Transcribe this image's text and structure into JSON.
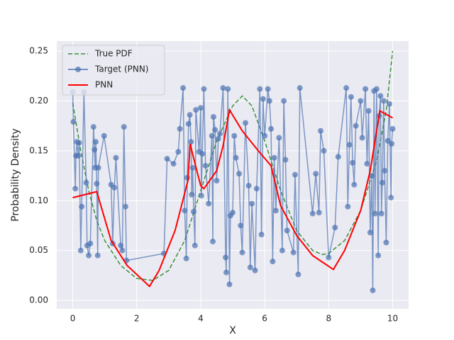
{
  "chart_data": {
    "type": "line",
    "xlabel": "X",
    "ylabel": "Probability Density",
    "xlim": [
      -0.5,
      10.5
    ],
    "ylim": [
      -0.0085,
      0.26
    ],
    "xticks": [
      0,
      2,
      4,
      6,
      8,
      10
    ],
    "yticks": [
      {
        "value": 0,
        "label": "0.00"
      },
      0.05,
      {
        "value": 0.1,
        "label": "0.10"
      },
      0.15,
      {
        "value": 0.2,
        "label": "0.20"
      },
      0.25
    ],
    "grid": true,
    "legend": "upper left",
    "background": "#eaeaf2",
    "series": [
      {
        "name": "True PDF",
        "color": "#3a923a",
        "linestyle": "dashed",
        "marker": "none",
        "x": [
          0,
          0.25,
          0.5,
          0.75,
          1,
          1.5,
          2,
          2.5,
          3,
          3.5,
          4,
          4.5,
          5,
          5.3,
          5.6,
          6,
          6.5,
          7,
          7.5,
          7.8,
          8,
          8.5,
          9,
          9.5,
          9.8,
          10
        ],
        "values": [
          0.198,
          0.15,
          0.11,
          0.08,
          0.06,
          0.035,
          0.022,
          0.02,
          0.03,
          0.06,
          0.11,
          0.16,
          0.195,
          0.205,
          0.195,
          0.16,
          0.11,
          0.07,
          0.05,
          0.046,
          0.047,
          0.06,
          0.09,
          0.14,
          0.19,
          0.25
        ]
      },
      {
        "name": "Target (PNN)",
        "color": "#4c72b0",
        "linestyle": "solid",
        "marker": "circle",
        "x": [
          0.0,
          0.02,
          0.08,
          0.1,
          0.13,
          0.17,
          0.2,
          0.25,
          0.28,
          0.35,
          0.42,
          0.45,
          0.5,
          0.55,
          0.65,
          0.68,
          0.7,
          0.72,
          0.75,
          0.78,
          0.8,
          0.98,
          1.2,
          1.25,
          1.3,
          1.35,
          1.5,
          1.55,
          1.6,
          1.65,
          1.68,
          2.85,
          2.95,
          3.15,
          3.3,
          3.35,
          3.45,
          3.5,
          3.55,
          3.58,
          3.62,
          3.66,
          3.7,
          3.72,
          3.75,
          3.78,
          3.82,
          3.85,
          3.95,
          4.0,
          4.02,
          4.05,
          4.1,
          4.15,
          4.25,
          4.35,
          4.38,
          4.4,
          4.45,
          4.5,
          4.55,
          4.6,
          4.7,
          4.78,
          4.8,
          4.85,
          4.9,
          4.93,
          5.0,
          5.05,
          5.1,
          5.2,
          5.25,
          5.3,
          5.4,
          5.5,
          5.55,
          5.6,
          5.7,
          5.75,
          5.85,
          5.9,
          5.95,
          6.0,
          6.1,
          6.15,
          6.2,
          6.25,
          6.3,
          6.35,
          6.45,
          6.55,
          6.6,
          6.65,
          6.7,
          6.9,
          6.95,
          7.05,
          7.1,
          7.5,
          7.6,
          7.7,
          7.75,
          7.85,
          8.0,
          8.2,
          8.3,
          8.55,
          8.6,
          8.65,
          8.7,
          8.75,
          8.8,
          8.85,
          9.0,
          9.05,
          9.15,
          9.2,
          9.25,
          9.3,
          9.35,
          9.38,
          9.42,
          9.45,
          9.5,
          9.55,
          9.58,
          9.62,
          9.65,
          9.68,
          9.72,
          9.75,
          9.8,
          9.85,
          9.9,
          9.95,
          9.97,
          10.0
        ],
        "values": [
          0.209,
          0.179,
          0.112,
          0.145,
          0.159,
          0.145,
          0.158,
          0.05,
          0.094,
          0.209,
          0.118,
          0.055,
          0.045,
          0.057,
          0.174,
          0.151,
          0.133,
          0.159,
          0.117,
          0.045,
          0.133,
          0.165,
          0.116,
          0.057,
          0.113,
          0.143,
          0.055,
          0.05,
          0.174,
          0.094,
          0.04,
          0.047,
          0.142,
          0.137,
          0.149,
          0.172,
          0.213,
          0.09,
          0.042,
          0.123,
          0.177,
          0.186,
          0.159,
          0.106,
          0.133,
          0.089,
          0.055,
          0.191,
          0.149,
          0.193,
          0.105,
          0.147,
          0.212,
          0.135,
          0.097,
          0.165,
          0.059,
          0.184,
          0.171,
          0.12,
          0.162,
          0.167,
          0.213,
          0.043,
          0.028,
          0.212,
          0.016,
          0.085,
          0.088,
          0.165,
          0.143,
          0.127,
          0.075,
          0.048,
          0.178,
          0.115,
          0.033,
          0.097,
          0.03,
          0.112,
          0.212,
          0.066,
          0.202,
          0.165,
          0.212,
          0.2,
          0.172,
          0.039,
          0.143,
          0.09,
          0.163,
          0.05,
          0.2,
          0.141,
          0.07,
          0.048,
          0.126,
          0.026,
          0.213,
          0.087,
          0.127,
          0.088,
          0.17,
          0.15,
          0.043,
          0.073,
          0.144,
          0.213,
          0.094,
          0.156,
          0.204,
          0.138,
          0.116,
          0.175,
          0.2,
          0.163,
          0.212,
          0.137,
          0.19,
          0.068,
          0.125,
          0.01,
          0.21,
          0.087,
          0.212,
          0.045,
          0.185,
          0.205,
          0.087,
          0.118,
          0.2,
          0.13,
          0.058,
          0.16,
          0.197,
          0.103,
          0.157,
          0.172
        ]
      },
      {
        "name": "PNN",
        "color": "#ff0000",
        "linestyle": "solid",
        "marker": "none",
        "x": [
          0,
          0.75,
          1.2,
          1.7,
          2.4,
          2.7,
          3.2,
          3.6,
          3.67,
          3.8,
          4.0,
          4.1,
          4.5,
          4.7,
          4.9,
          5.3,
          5.8,
          6.2,
          6.5,
          7,
          7.5,
          8.15,
          8.5,
          9.0,
          9.3,
          9.6,
          10
        ],
        "values": [
          0.103,
          0.109,
          0.06,
          0.035,
          0.014,
          0.03,
          0.07,
          0.12,
          0.157,
          0.14,
          0.115,
          0.112,
          0.13,
          0.155,
          0.191,
          0.17,
          0.15,
          0.135,
          0.095,
          0.065,
          0.045,
          0.031,
          0.05,
          0.09,
          0.13,
          0.19,
          0.183
        ]
      }
    ]
  }
}
